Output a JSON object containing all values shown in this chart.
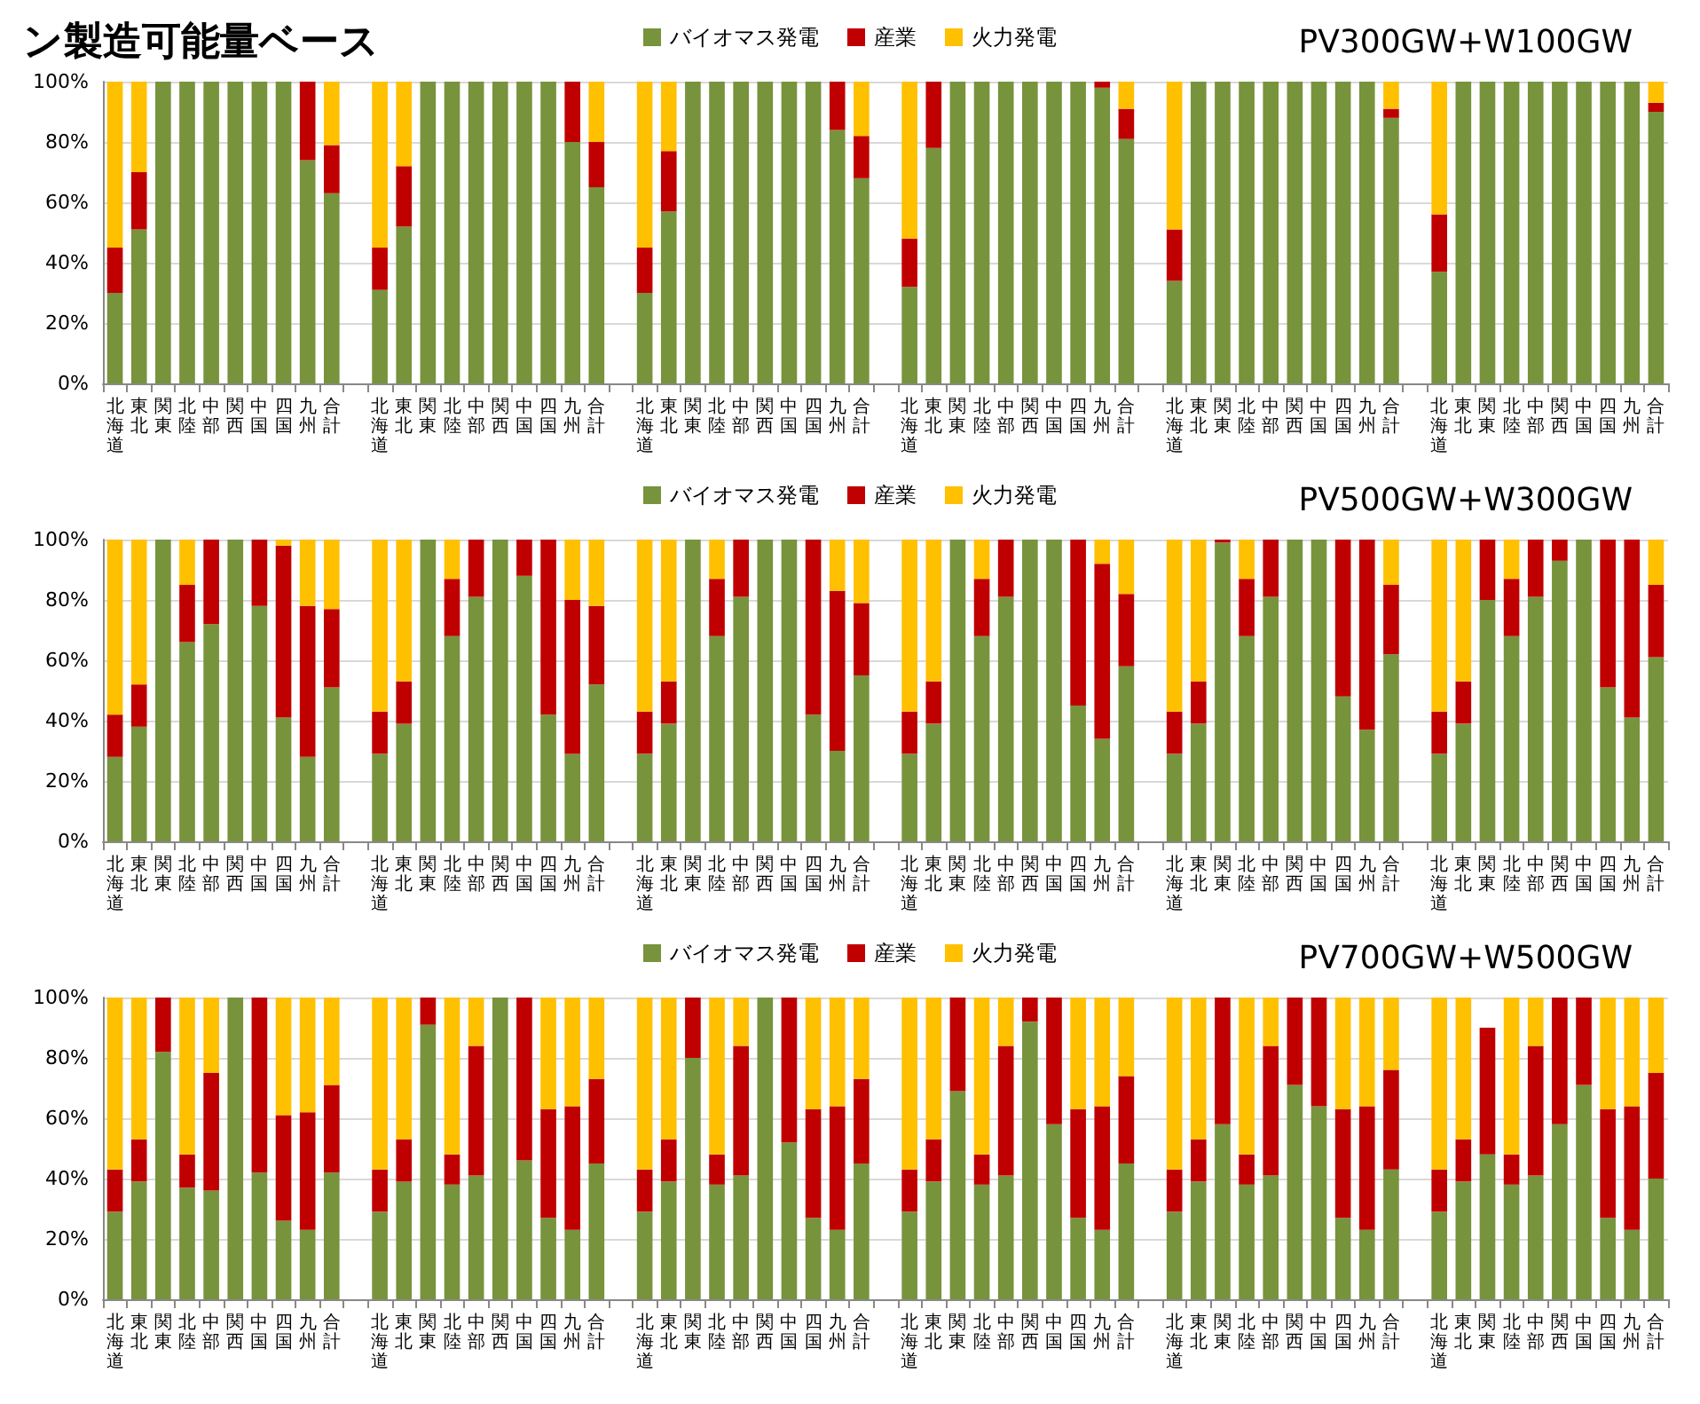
{
  "chart_data": [
    {
      "type": "bar",
      "stacked": true,
      "title": "ン製造可能量ベース",
      "subtitle": "PV300GW+W100GW",
      "legend": "top",
      "grid": "y",
      "categories": [
        "北海道",
        "東北",
        "関東",
        "北陸",
        "中部",
        "関西",
        "中国",
        "四国",
        "九州",
        "合計",
        null,
        "北海道",
        "東北",
        "関東",
        "北陸",
        "中部",
        "関西",
        "中国",
        "四国",
        "九州",
        "合計",
        null,
        "北海道",
        "東北",
        "関東",
        "北陸",
        "中部",
        "関西",
        "中国",
        "四国",
        "九州",
        "合計",
        null,
        "北海道",
        "東北",
        "関東",
        "北陸",
        "中部",
        "関西",
        "中国",
        "四国",
        "九州",
        "合計",
        null,
        "北海道",
        "東北",
        "関東",
        "北陸",
        "中部",
        "関西",
        "中国",
        "四国",
        "九州",
        "合計",
        null,
        "北海道",
        "東北",
        "関東",
        "北陸",
        "中部",
        "関西",
        "中国",
        "四国",
        "九州",
        "合計"
      ],
      "ylim": [
        0,
        100
      ],
      "yticks": [
        {
          "value": 0,
          "label": "0%"
        },
        {
          "value": 20,
          "label": "20%"
        },
        {
          "value": 40,
          "label": "40%"
        },
        {
          "value": 60,
          "label": "60%"
        },
        {
          "value": 80,
          "label": "80%"
        },
        {
          "value": 100,
          "label": "100%"
        }
      ],
      "series": [
        {
          "name": "バイオマス発電",
          "color": "#77933c",
          "values": [
            30,
            51,
            100,
            100,
            100,
            100,
            100,
            100,
            74,
            63,
            null,
            31,
            52,
            100,
            100,
            100,
            100,
            100,
            100,
            80,
            65,
            null,
            30,
            57,
            100,
            100,
            100,
            100,
            100,
            100,
            84,
            68,
            null,
            32,
            78,
            100,
            100,
            100,
            100,
            100,
            100,
            98,
            81,
            null,
            34,
            100,
            100,
            100,
            100,
            100,
            100,
            100,
            100,
            88,
            null,
            37,
            100,
            100,
            100,
            100,
            100,
            100,
            100,
            100,
            90
          ]
        },
        {
          "name": "産業",
          "color": "#c00000",
          "values": [
            15,
            19,
            0,
            0,
            0,
            0,
            0,
            0,
            26,
            16,
            null,
            14,
            20,
            0,
            0,
            0,
            0,
            0,
            0,
            20,
            15,
            null,
            15,
            20,
            0,
            0,
            0,
            0,
            0,
            0,
            16,
            14,
            null,
            16,
            22,
            0,
            0,
            0,
            0,
            0,
            0,
            2,
            10,
            null,
            17,
            0,
            0,
            0,
            0,
            0,
            0,
            0,
            0,
            3,
            null,
            19,
            0,
            0,
            0,
            0,
            0,
            0,
            0,
            0,
            3
          ]
        },
        {
          "name": "火力発電",
          "color": "#ffc000",
          "values": [
            55,
            30,
            0,
            0,
            0,
            0,
            0,
            0,
            0,
            21,
            null,
            55,
            28,
            0,
            0,
            0,
            0,
            0,
            0,
            0,
            20,
            null,
            55,
            23,
            0,
            0,
            0,
            0,
            0,
            0,
            0,
            18,
            null,
            52,
            0,
            0,
            0,
            0,
            0,
            0,
            0,
            0,
            9,
            null,
            49,
            0,
            0,
            0,
            0,
            0,
            0,
            0,
            0,
            9,
            null,
            44,
            0,
            0,
            0,
            0,
            0,
            0,
            0,
            0,
            7
          ]
        }
      ]
    },
    {
      "type": "bar",
      "stacked": true,
      "subtitle": "PV500GW+W300GW",
      "legend": "top",
      "grid": "y",
      "categories": [
        "北海道",
        "東北",
        "関東",
        "北陸",
        "中部",
        "関西",
        "中国",
        "四国",
        "九州",
        "合計",
        null,
        "北海道",
        "東北",
        "関東",
        "北陸",
        "中部",
        "関西",
        "中国",
        "四国",
        "九州",
        "合計",
        null,
        "北海道",
        "東北",
        "関東",
        "北陸",
        "中部",
        "関西",
        "中国",
        "四国",
        "九州",
        "合計",
        null,
        "北海道",
        "東北",
        "関東",
        "北陸",
        "中部",
        "関西",
        "中国",
        "四国",
        "九州",
        "合計",
        null,
        "北海道",
        "東北",
        "関東",
        "北陸",
        "中部",
        "関西",
        "中国",
        "四国",
        "九州",
        "合計",
        null,
        "北海道",
        "東北",
        "関東",
        "北陸",
        "中部",
        "関西",
        "中国",
        "四国",
        "九州",
        "合計"
      ],
      "ylim": [
        0,
        100
      ],
      "yticks": [
        {
          "value": 0,
          "label": "0%"
        },
        {
          "value": 20,
          "label": "20%"
        },
        {
          "value": 40,
          "label": "40%"
        },
        {
          "value": 60,
          "label": "60%"
        },
        {
          "value": 80,
          "label": "80%"
        },
        {
          "value": 100,
          "label": "100%"
        }
      ],
      "series": [
        {
          "name": "バイオマス発電",
          "color": "#77933c",
          "values": [
            28,
            38,
            100,
            66,
            72,
            100,
            78,
            41,
            28,
            51,
            null,
            29,
            39,
            100,
            68,
            81,
            100,
            88,
            42,
            29,
            52,
            null,
            29,
            39,
            100,
            68,
            81,
            100,
            100,
            42,
            30,
            55,
            null,
            29,
            39,
            100,
            68,
            81,
            100,
            100,
            45,
            34,
            58,
            null,
            29,
            39,
            99,
            68,
            81,
            100,
            100,
            48,
            37,
            62,
            null,
            29,
            39,
            80,
            68,
            81,
            93,
            100,
            51,
            41,
            61
          ]
        },
        {
          "name": "産業",
          "color": "#c00000",
          "values": [
            14,
            14,
            0,
            19,
            28,
            0,
            22,
            57,
            50,
            26,
            null,
            14,
            14,
            0,
            19,
            19,
            0,
            12,
            58,
            51,
            26,
            null,
            14,
            14,
            0,
            19,
            19,
            0,
            0,
            58,
            53,
            24,
            null,
            14,
            14,
            0,
            19,
            19,
            0,
            0,
            55,
            58,
            24,
            null,
            14,
            14,
            1,
            19,
            19,
            0,
            0,
            52,
            63,
            23,
            null,
            14,
            14,
            20,
            19,
            19,
            7,
            0,
            49,
            59,
            24
          ]
        },
        {
          "name": "火力発電",
          "color": "#ffc000",
          "values": [
            58,
            48,
            0,
            15,
            0,
            0,
            0,
            2,
            22,
            23,
            null,
            57,
            47,
            0,
            13,
            0,
            0,
            0,
            0,
            20,
            22,
            null,
            57,
            47,
            0,
            13,
            0,
            0,
            0,
            0,
            17,
            21,
            null,
            57,
            47,
            0,
            13,
            0,
            0,
            0,
            0,
            8,
            18,
            null,
            57,
            47,
            0,
            13,
            0,
            0,
            0,
            0,
            0,
            15,
            null,
            57,
            47,
            0,
            13,
            0,
            0,
            0,
            0,
            0,
            15
          ]
        }
      ]
    },
    {
      "type": "bar",
      "stacked": true,
      "subtitle": "PV700GW+W500GW",
      "legend": "top",
      "grid": "y",
      "categories": [
        "北海道",
        "東北",
        "関東",
        "北陸",
        "中部",
        "関西",
        "中国",
        "四国",
        "九州",
        "合計",
        null,
        "北海道",
        "東北",
        "関東",
        "北陸",
        "中部",
        "関西",
        "中国",
        "四国",
        "九州",
        "合計",
        null,
        "北海道",
        "東北",
        "関東",
        "北陸",
        "中部",
        "関西",
        "中国",
        "四国",
        "九州",
        "合計",
        null,
        "北海道",
        "東北",
        "関東",
        "北陸",
        "中部",
        "関西",
        "中国",
        "四国",
        "九州",
        "合計",
        null,
        "北海道",
        "東北",
        "関東",
        "北陸",
        "中部",
        "関西",
        "中国",
        "四国",
        "九州",
        "合計",
        null,
        "北海道",
        "東北",
        "関東",
        "北陸",
        "中部",
        "関西",
        "中国",
        "四国",
        "九州",
        "合計"
      ],
      "ylim": [
        0,
        100
      ],
      "yticks": [
        {
          "value": 0,
          "label": "0%"
        },
        {
          "value": 20,
          "label": "20%"
        },
        {
          "value": 40,
          "label": "40%"
        },
        {
          "value": 60,
          "label": "60%"
        },
        {
          "value": 80,
          "label": "80%"
        },
        {
          "value": 100,
          "label": "100%"
        }
      ],
      "series": [
        {
          "name": "バイオマス発電",
          "color": "#77933c",
          "values": [
            29,
            39,
            82,
            37,
            36,
            100,
            42,
            26,
            23,
            42,
            null,
            29,
            39,
            91,
            38,
            41,
            100,
            46,
            27,
            23,
            45,
            null,
            29,
            39,
            80,
            38,
            41,
            100,
            52,
            27,
            23,
            45,
            null,
            29,
            39,
            69,
            38,
            41,
            92,
            58,
            27,
            23,
            45,
            null,
            29,
            39,
            58,
            38,
            41,
            71,
            64,
            27,
            23,
            43,
            null,
            29,
            39,
            48,
            38,
            41,
            58,
            71,
            27,
            23,
            40
          ]
        },
        {
          "name": "産業",
          "color": "#c00000",
          "values": [
            14,
            14,
            18,
            11,
            39,
            0,
            58,
            35,
            39,
            29,
            null,
            14,
            14,
            9,
            10,
            43,
            0,
            54,
            36,
            41,
            28,
            null,
            14,
            14,
            20,
            10,
            43,
            0,
            48,
            36,
            41,
            28,
            null,
            14,
            14,
            31,
            10,
            43,
            8,
            42,
            36,
            41,
            29,
            null,
            14,
            14,
            42,
            10,
            43,
            29,
            36,
            36,
            41,
            33,
            null,
            14,
            14,
            42,
            10,
            43,
            42,
            29,
            36,
            41,
            35
          ]
        },
        {
          "name": "火力発電",
          "color": "#ffc000",
          "values": [
            57,
            47,
            0,
            52,
            25,
            0,
            0,
            39,
            38,
            29,
            null,
            57,
            47,
            0,
            52,
            16,
            0,
            0,
            37,
            36,
            27,
            null,
            57,
            47,
            0,
            52,
            16,
            0,
            0,
            37,
            36,
            27,
            null,
            57,
            47,
            0,
            52,
            16,
            0,
            0,
            37,
            36,
            26,
            null,
            57,
            47,
            0,
            52,
            16,
            0,
            0,
            37,
            36,
            24,
            null,
            57,
            47,
            0,
            52,
            16,
            0,
            0,
            37,
            36,
            25
          ]
        }
      ]
    }
  ]
}
